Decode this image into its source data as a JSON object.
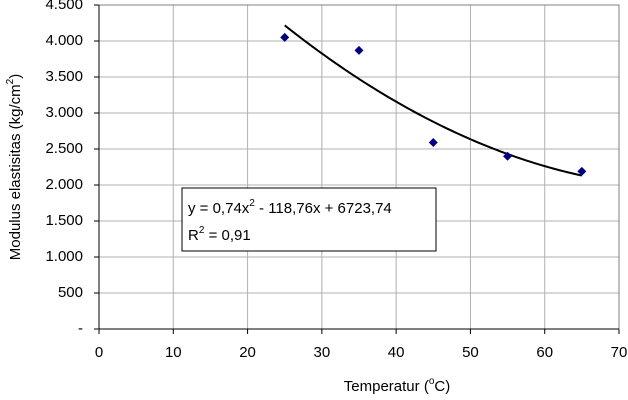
{
  "chart_data": {
    "type": "scatter",
    "x_label": [
      "Temperatur (",
      "o",
      "C)"
    ],
    "y_label": [
      "Modulus elastisitas (kg/cm",
      "2",
      ")"
    ],
    "x": [
      25,
      35,
      45,
      55,
      65
    ],
    "values": [
      4050,
      3870,
      2590,
      2400,
      2190
    ],
    "color": "#000080",
    "xlim": [
      0,
      70
    ],
    "xticks": [
      0,
      10,
      20,
      30,
      40,
      50,
      60,
      70
    ],
    "ylim": [
      0,
      4500
    ],
    "yticks": [
      {
        "value": 0,
        "label": "-"
      },
      500,
      {
        "value": 1000,
        "label": "1.000"
      },
      {
        "value": 1500,
        "label": "1.500"
      },
      {
        "value": 2000,
        "label": "2.000"
      },
      {
        "value": 2500,
        "label": "2.500"
      },
      {
        "value": 3000,
        "label": "3.000"
      },
      {
        "value": 3500,
        "label": "3.500"
      },
      {
        "value": 4000,
        "label": "4.000"
      },
      {
        "value": 4500,
        "label": "4.500"
      }
    ],
    "grid": true,
    "trendline": {
      "coefficients": [
        6723.74,
        -118.76,
        0.74
      ],
      "equation": [
        "y = 0,74x",
        "2",
        " - 118,76x + 6723,74"
      ],
      "r_squared": [
        "R",
        "2",
        " = 0,91"
      ]
    }
  }
}
